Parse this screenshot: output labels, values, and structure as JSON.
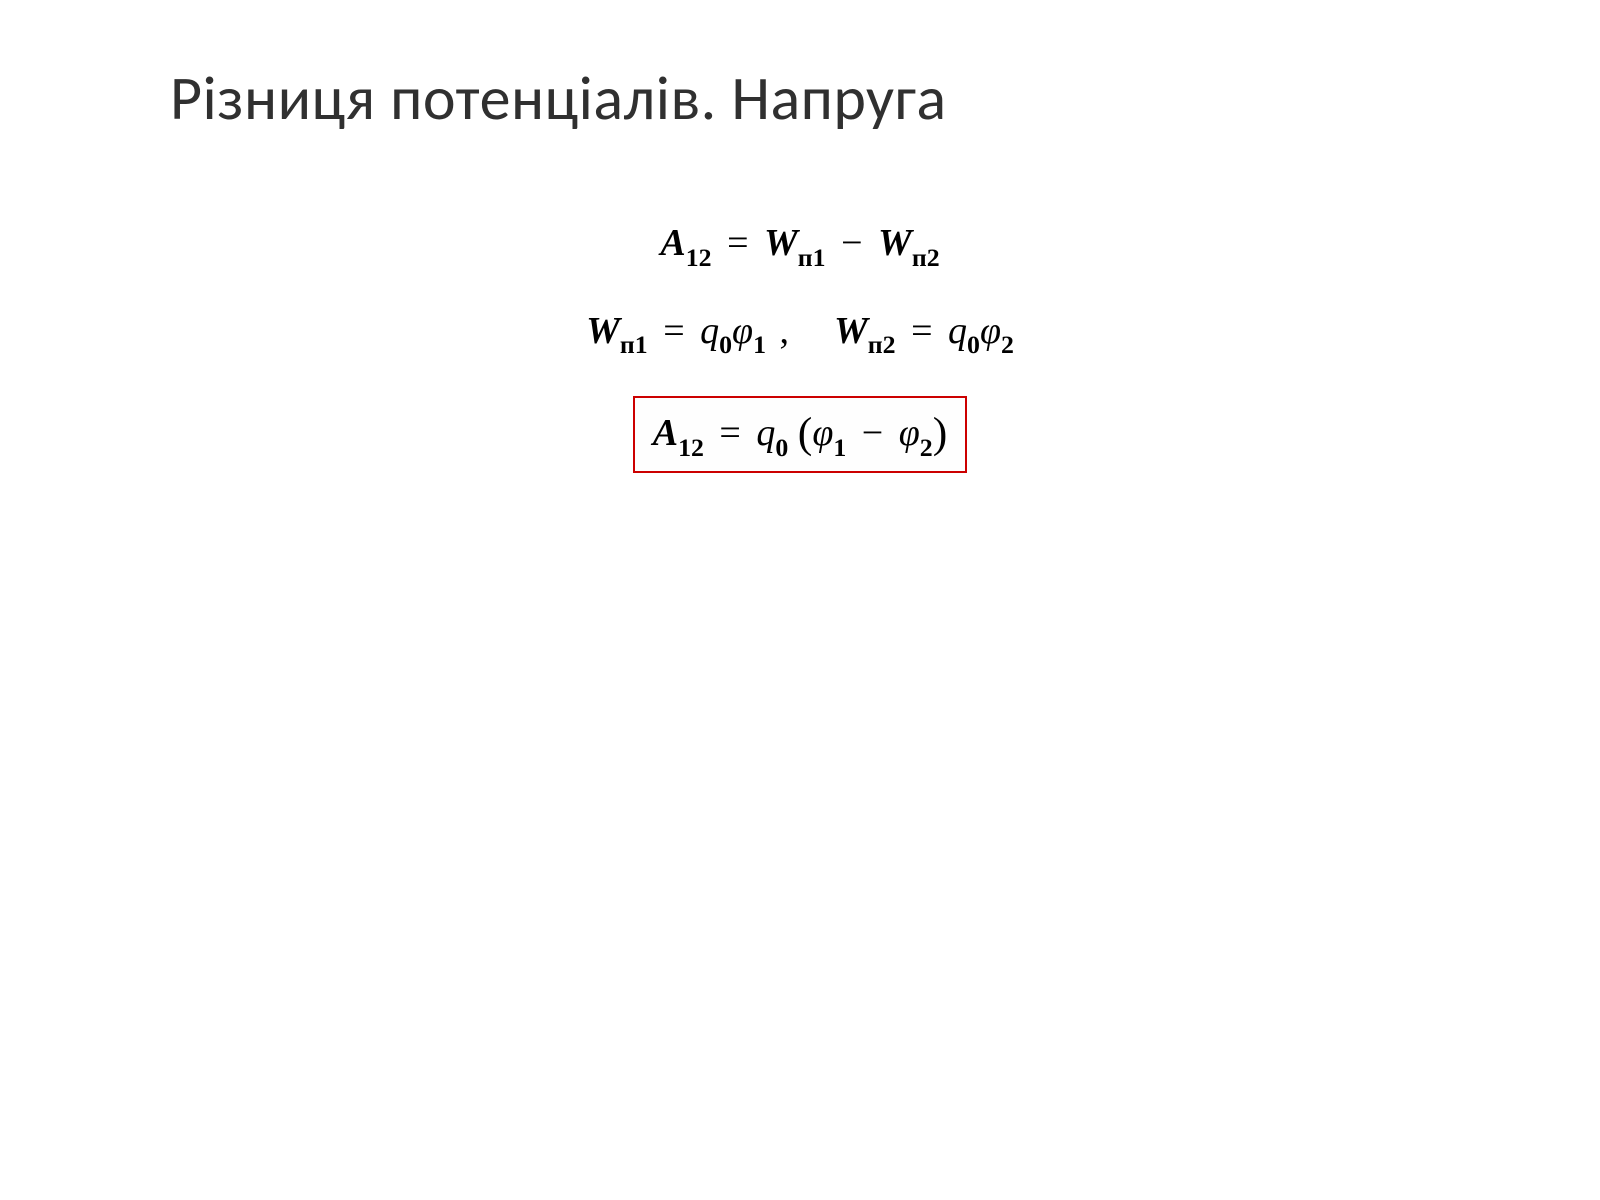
{
  "slide": {
    "title": "Різниця потенціалів. Напруга",
    "background_color": "#ffffff",
    "text_color": "#000000",
    "title_color": "#303030",
    "title_fontsize": 62,
    "box_border_color": "#cc0000",
    "equation_fontsize": 38,
    "equations": {
      "eq1": {
        "lhs_var": "A",
        "lhs_sub": "12",
        "rhs_term1_var": "W",
        "rhs_term1_sub": "п1",
        "rhs_op": "−",
        "rhs_term2_var": "W",
        "rhs_term2_sub": "п2"
      },
      "eq2a": {
        "lhs_var": "W",
        "lhs_sub": "п1",
        "rhs_q_var": "q",
        "rhs_q_sub": "0",
        "rhs_phi_var": "φ",
        "rhs_phi_sub": "1"
      },
      "eq2b": {
        "lhs_var": "W",
        "lhs_sub": "п2",
        "rhs_q_var": "q",
        "rhs_q_sub": "0",
        "rhs_phi_var": "φ",
        "rhs_phi_sub": "2"
      },
      "eq3": {
        "lhs_var": "A",
        "lhs_sub": "12",
        "q_var": "q",
        "q_sub": "0",
        "phi1_var": "φ",
        "phi1_sub": "1",
        "op": "−",
        "phi2_var": "φ",
        "phi2_sub": "2"
      }
    }
  }
}
